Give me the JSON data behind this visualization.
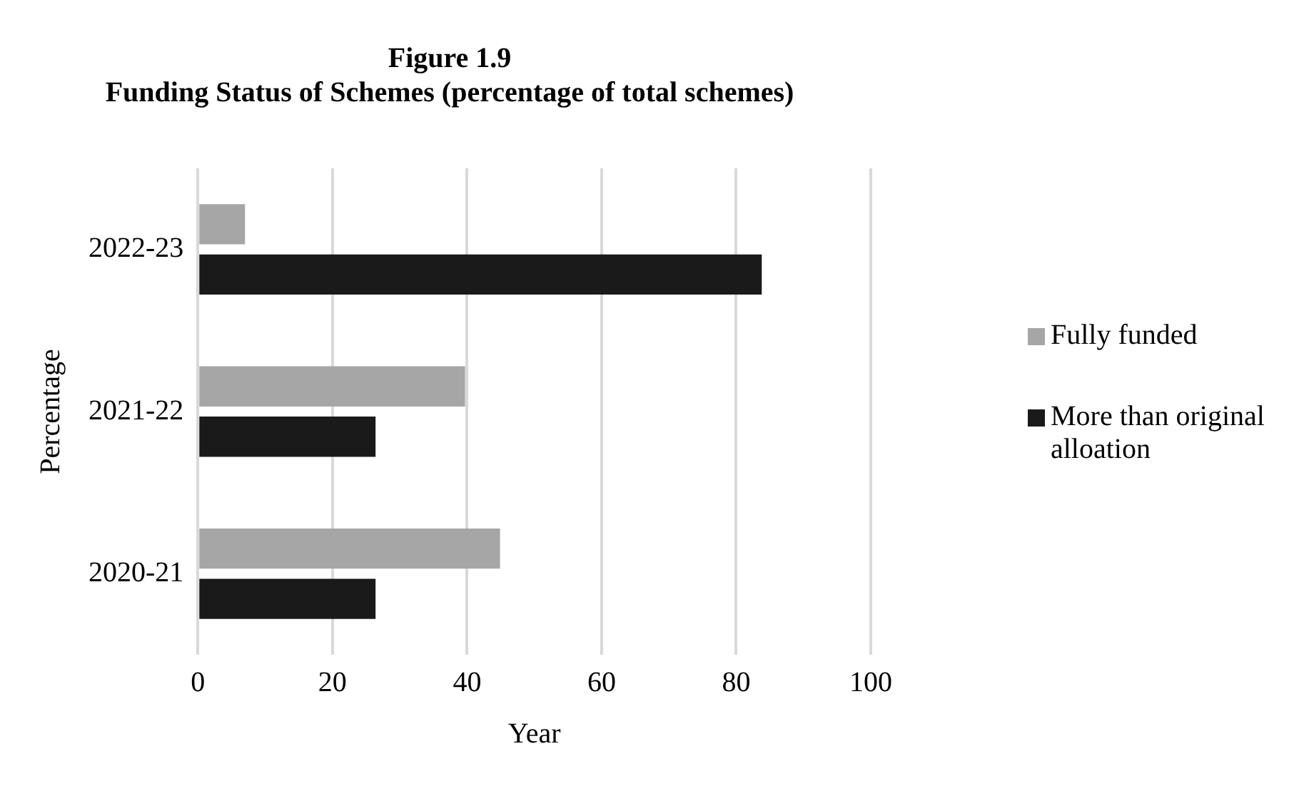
{
  "chart_data": {
    "type": "bar",
    "orientation": "horizontal",
    "title": "Figure 1.9",
    "subtitle": "Funding Status of Schemes (percentage of total schemes)",
    "xlabel": "Year",
    "ylabel": "Percentage",
    "categories": [
      "2022-23",
      "2021-22",
      "2020-21"
    ],
    "series": [
      {
        "name": "Fully funded",
        "color": "#a6a6a6",
        "values": [
          7,
          39.7,
          44.9
        ]
      },
      {
        "name": "More than original alloation",
        "color": "#1a1a1a",
        "values": [
          83.8,
          26.4,
          26.4
        ]
      }
    ],
    "xlim": [
      0,
      100
    ],
    "xticks": [
      0,
      20,
      40,
      60,
      80,
      100
    ],
    "grid": "x",
    "legend": "right"
  }
}
